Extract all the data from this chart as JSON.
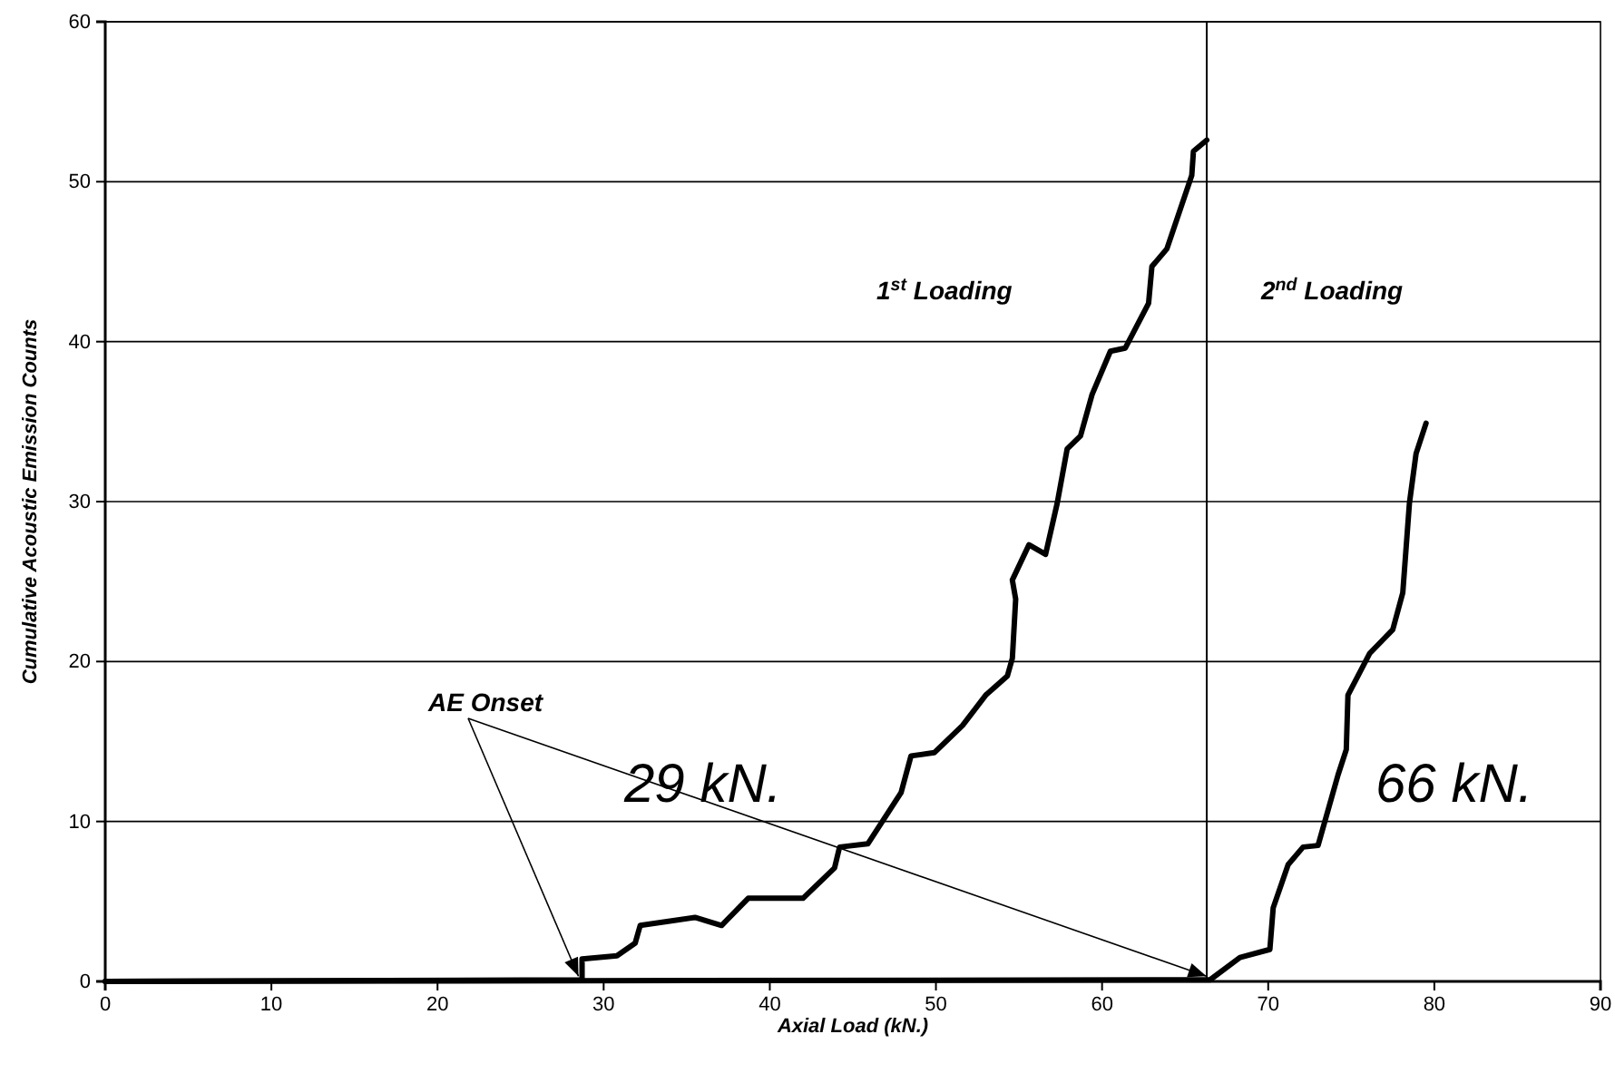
{
  "chart_data": {
    "type": "line",
    "xlabel": "Axial Load (kN.)",
    "ylabel": "Cumulative Acoustic Emission Counts",
    "xlim": [
      0,
      90
    ],
    "xticks": [
      0,
      10,
      20,
      30,
      40,
      50,
      60,
      70,
      80,
      90
    ],
    "ylim": [
      0,
      60
    ],
    "yticks": [
      0,
      10,
      20,
      30,
      40,
      50,
      60
    ],
    "grid": "y",
    "marker": "none",
    "line_style": "solid",
    "series": [
      {
        "color": "#000000",
        "x": [
          0,
          28.7,
          28.7,
          30.8,
          31.9,
          32.2,
          35.5,
          37.1,
          38.7,
          42.0,
          43.9,
          44.2,
          45.9,
          47.9,
          48.5,
          49.9,
          51.6,
          53.0,
          54.3,
          54.6,
          54.8,
          54.6,
          55.6,
          56.6,
          57.3,
          57.9,
          58.7,
          59.4,
          60.5,
          61.4,
          62.8,
          63.0,
          63.9,
          65.4,
          65.5,
          66.3
        ],
        "values": [
          0,
          0.1,
          1.4,
          1.6,
          2.4,
          3.5,
          4.0,
          3.5,
          5.2,
          5.2,
          7.1,
          8.4,
          8.6,
          11.8,
          14.1,
          14.3,
          16.0,
          17.9,
          19.1,
          20.2,
          23.9,
          25.1,
          27.3,
          26.7,
          29.9,
          33.3,
          34.1,
          36.7,
          39.4,
          39.6,
          42.4,
          44.7,
          45.8,
          50.4,
          51.9,
          52.6
        ]
      },
      {
        "color": "#000000",
        "x": [
          0,
          66.5,
          68.3,
          70.1,
          70.3,
          71.2,
          72.1,
          73.0,
          74.2,
          74.7,
          74.8,
          76.1,
          77.5,
          78.1,
          78.5,
          78.9,
          79.5
        ],
        "values": [
          0,
          0.1,
          1.5,
          2.0,
          4.6,
          7.3,
          8.4,
          8.5,
          12.9,
          14.5,
          17.9,
          20.5,
          22.0,
          24.3,
          29.9,
          33.0,
          34.9
        ]
      }
    ],
    "ref_lines": [
      {
        "axis": "x",
        "value": 66.3,
        "color": "#000000"
      }
    ],
    "annotations": [
      {
        "text": "AE Onset",
        "x": 28.7,
        "y": 0.1
      },
      "29 kN.",
      "66 kN.",
      "1$^{st}$ Loading",
      "2$^{nd}$ Loading"
    ]
  }
}
